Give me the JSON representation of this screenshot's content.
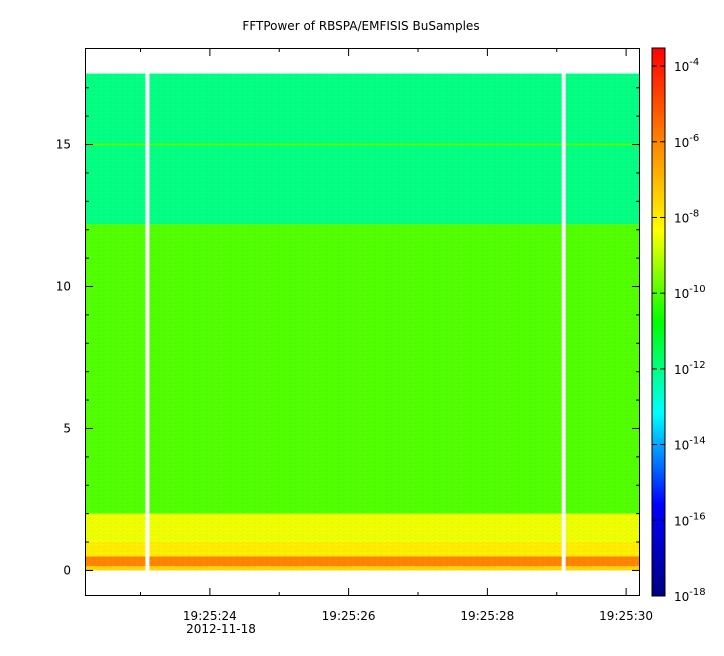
{
  "chart_data": {
    "type": "heatmap",
    "title": "FFTPower of RBSPA/EMFISIS  BuSamples",
    "xlabel": "",
    "ylabel": "",
    "x_date": "2012-11-18",
    "x_range": [
      "19:25:22.2",
      "19:25:30.2"
    ],
    "x_ticks": [
      {
        "label": "19:25:24",
        "value": "19:25:24"
      },
      {
        "label": "19:25:26",
        "value": "19:25:26"
      },
      {
        "label": "19:25:28",
        "value": "19:25:28"
      },
      {
        "label": "19:25:30",
        "value": "19:25:30"
      }
    ],
    "ylim": [
      -0.9,
      18.4
    ],
    "y_ticks": [
      {
        "label": "0",
        "value": 0
      },
      {
        "label": "5",
        "value": 5
      },
      {
        "label": "10",
        "value": 10
      },
      {
        "label": "15",
        "value": 15
      }
    ],
    "colorbar": {
      "scale": "log",
      "range": [
        "1e-18",
        "3e-4"
      ],
      "ticks": [
        {
          "base": "10",
          "exp": "-4",
          "value": "1e-4"
        },
        {
          "base": "10",
          "exp": "-6",
          "value": "1e-6"
        },
        {
          "base": "10",
          "exp": "-8",
          "value": "1e-8"
        },
        {
          "base": "10",
          "exp": "-10",
          "value": "1e-10"
        },
        {
          "base": "10",
          "exp": "-12",
          "value": "1e-12"
        },
        {
          "base": "10",
          "exp": "-14",
          "value": "1e-14"
        },
        {
          "base": "10",
          "exp": "-16",
          "value": "1e-16"
        },
        {
          "base": "10",
          "exp": "-18",
          "value": "1e-18"
        }
      ],
      "colors": [
        "#000080",
        "#0000ff",
        "#00ffff",
        "#00ff00",
        "#ffff00",
        "#ff8000",
        "#ff0000"
      ]
    },
    "data_y_range": [
      0,
      17.5
    ],
    "gaps": [
      "19:25:23.1",
      "19:25:29.1"
    ],
    "bands": [
      {
        "y": [
          0,
          0.15
        ],
        "power": "3e-8"
      },
      {
        "y": [
          0.15,
          0.5
        ],
        "power": "1e-6"
      },
      {
        "y": [
          0.5,
          1.0
        ],
        "power": "1e-8"
      },
      {
        "y": [
          1.0,
          2.0
        ],
        "power": "3e-9"
      },
      {
        "y": [
          2.0,
          12.2
        ],
        "power": "1e-10"
      },
      {
        "y": [
          12.2,
          17.5
        ],
        "power": "1e-12"
      }
    ],
    "lines": [
      {
        "y": 15.0,
        "power": "1e-10"
      }
    ]
  }
}
